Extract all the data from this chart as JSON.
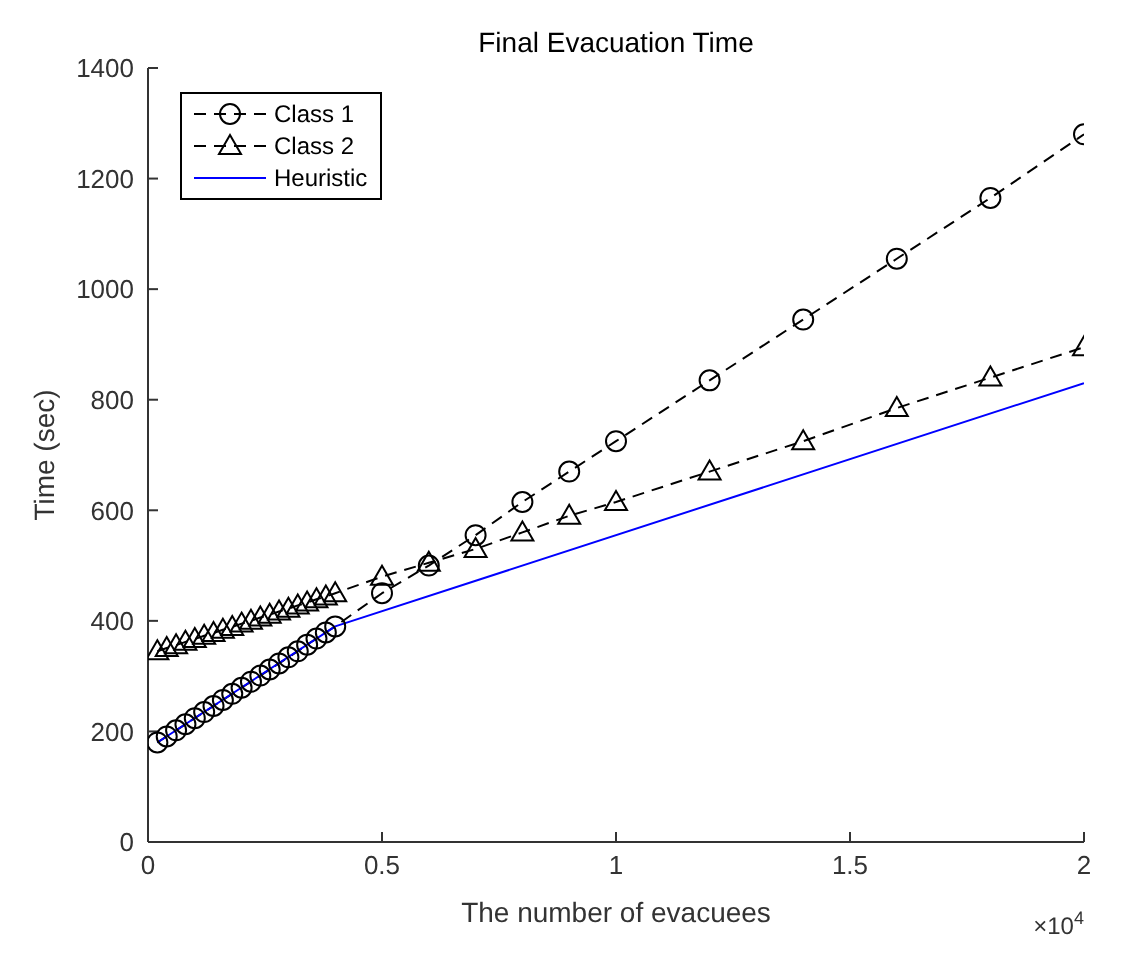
{
  "chart_data": {
    "type": "line",
    "title": "Final Evacuation Time",
    "xlabel": "The number of evacuees",
    "ylabel": "Time (sec)",
    "annotations": [
      "×10$^{4}$"
    ],
    "xlim": [
      0,
      2
    ],
    "xticks": [
      0,
      0.5,
      1,
      1.5,
      2
    ],
    "ylim": [
      0,
      1400
    ],
    "yticks": [
      0,
      200,
      400,
      600,
      800,
      1000,
      1200,
      1400
    ],
    "grid": false,
    "legend": "top left",
    "series": [
      {
        "name": "Class 1",
        "color": "#000000",
        "marker": "circle",
        "line_style": "dashed",
        "x": [
          0.02,
          0.04,
          0.06,
          0.08,
          0.1,
          0.12,
          0.14,
          0.16,
          0.18,
          0.2,
          0.22,
          0.24,
          0.26,
          0.28,
          0.3,
          0.32,
          0.34,
          0.36,
          0.38,
          0.4,
          0.5,
          0.6,
          0.7,
          0.8,
          0.9,
          1,
          1.2,
          1.4,
          1.6,
          1.8,
          2
        ],
        "values": [
          180,
          191,
          202,
          213,
          224,
          235,
          246,
          257,
          268,
          279,
          290,
          301,
          312,
          323,
          334,
          345,
          357,
          368,
          379,
          390,
          450,
          500,
          555,
          615,
          670,
          725,
          835,
          945,
          1055,
          1165,
          1280
        ]
      },
      {
        "name": "Class 2",
        "color": "#000000",
        "marker": "triangle",
        "line_style": "dashed",
        "x": [
          0.02,
          0.04,
          0.06,
          0.08,
          0.1,
          0.12,
          0.14,
          0.16,
          0.18,
          0.2,
          0.22,
          0.24,
          0.26,
          0.28,
          0.3,
          0.32,
          0.34,
          0.36,
          0.38,
          0.4,
          0.5,
          0.6,
          0.7,
          0.8,
          0.9,
          1,
          1.2,
          1.4,
          1.6,
          1.8,
          2
        ],
        "values": [
          345,
          351,
          356,
          362,
          367,
          373,
          378,
          384,
          389,
          395,
          400,
          406,
          411,
          417,
          422,
          428,
          433,
          439,
          444,
          450,
          480,
          505,
          530,
          560,
          590,
          615,
          670,
          725,
          785,
          840,
          895
        ]
      },
      {
        "name": "Heuristic",
        "color": "#0000ff",
        "marker": "none",
        "line_style": "solid",
        "x": [
          0.02,
          0.4,
          2
        ],
        "values": [
          180,
          390,
          830
        ]
      }
    ]
  }
}
